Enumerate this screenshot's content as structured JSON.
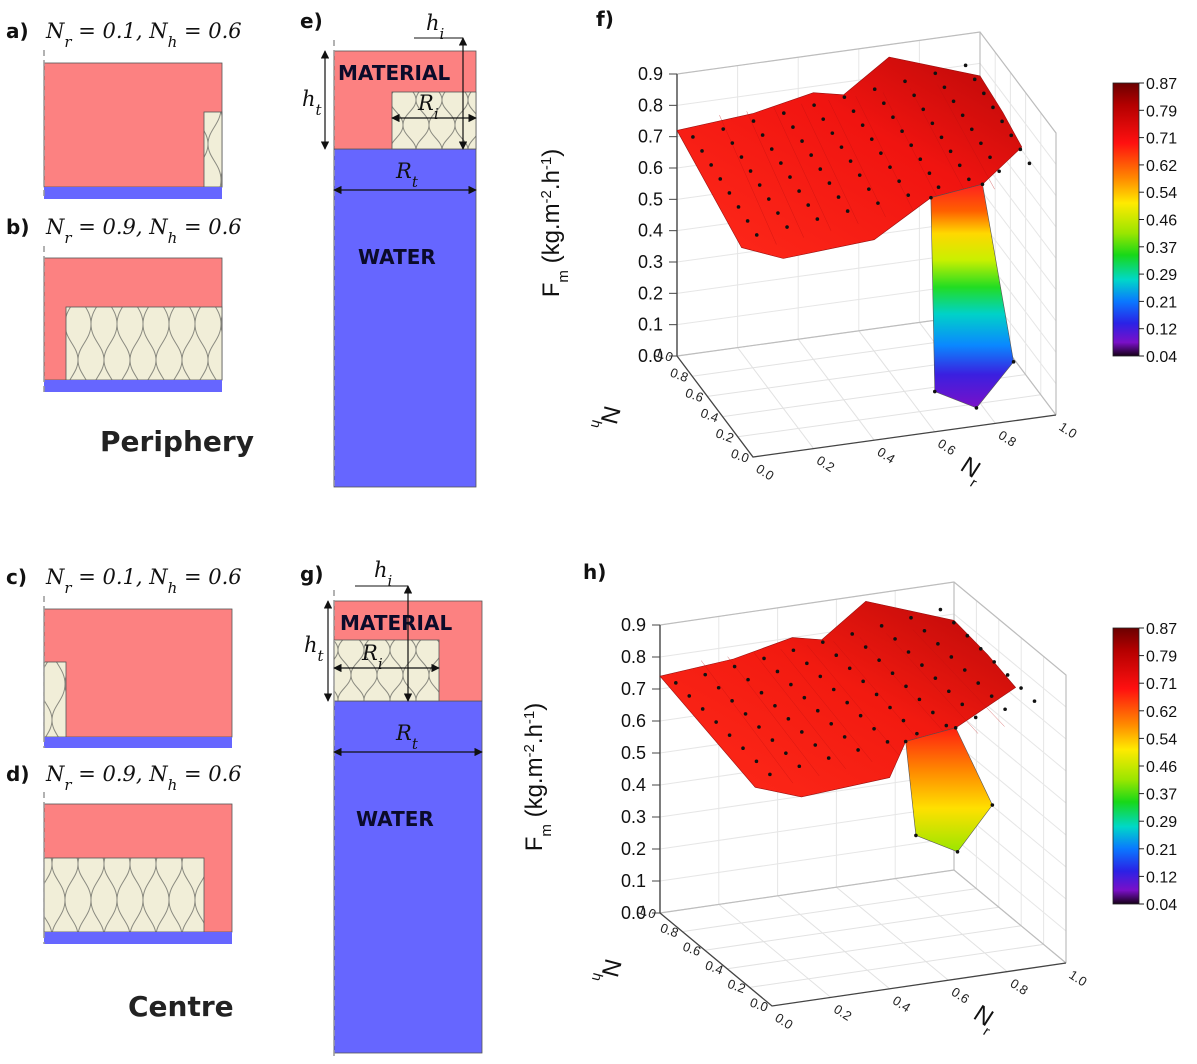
{
  "panels": {
    "a": {
      "letter": "a)",
      "label": "N_r = 0.1, N_h = 0.6"
    },
    "b": {
      "letter": "b)",
      "label": "N_r = 0.9, N_h = 0.6"
    },
    "c": {
      "letter": "c)",
      "label": "N_r = 0.1, N_h = 0.6"
    },
    "d": {
      "letter": "d)",
      "label": "N_r = 0.9, N_h = 0.6"
    },
    "e": {
      "letter": "e)",
      "material": "MATERIAL",
      "water": "WATER",
      "h_i": "h_i",
      "h_t": "h_t",
      "R_i": "R_i",
      "R_t": "R_t"
    },
    "g": {
      "letter": "g)",
      "material": "MATERIAL",
      "water": "WATER",
      "h_i": "h_i",
      "h_t": "h_t",
      "R_i": "R_i",
      "R_t": "R_t"
    },
    "f": {
      "letter": "f)"
    },
    "h": {
      "letter": "h)"
    }
  },
  "group_labels": {
    "periphery": "Periphery",
    "centre": "Centre"
  },
  "colors": {
    "material": "#fc8181",
    "water": "#6666ff",
    "insulation": "#f1eed8",
    "dashed_axis": "#999999"
  },
  "chart_data": [
    {
      "id": "f",
      "type": "surface3d",
      "title": "",
      "zlabel": "F_m (kg.m-2.h-1)",
      "xlabel": "N_r",
      "ylabel": "N_h",
      "zlim": [
        0.0,
        0.9
      ],
      "z_ticks": [
        "0.0",
        "0.1",
        "0.2",
        "0.3",
        "0.4",
        "0.5",
        "0.6",
        "0.7",
        "0.8",
        "0.9"
      ],
      "x_ticks": [
        "0.0",
        "0.2",
        "0.4",
        "0.6",
        "0.8",
        "1.0"
      ],
      "y_ticks": [
        "0.0",
        "0.2",
        "0.4",
        "0.6",
        "0.8",
        "1.0"
      ],
      "colorbar": {
        "colormap": "rainbow",
        "ticks": [
          "0.87",
          "0.79",
          "0.71",
          "0.62",
          "0.54",
          "0.46",
          "0.37",
          "0.29",
          "0.21",
          "0.12",
          "0.04"
        ]
      },
      "plateau_value": 0.72,
      "dip_min": 0.04,
      "dip_location": {
        "N_r": 0.7,
        "N_h": 0.1
      }
    },
    {
      "id": "h",
      "type": "surface3d",
      "title": "",
      "zlabel": "F_m (kg.m-2.h-1)",
      "xlabel": "N_r",
      "ylabel": "N_h",
      "zlim": [
        0.0,
        0.9
      ],
      "z_ticks": [
        "0.0",
        "0.1",
        "0.2",
        "0.3",
        "0.4",
        "0.5",
        "0.6",
        "0.7",
        "0.8",
        "0.9"
      ],
      "x_ticks": [
        "0.0",
        "0.2",
        "0.4",
        "0.6",
        "0.8",
        "1.0"
      ],
      "y_ticks": [
        "0.0",
        "0.2",
        "0.4",
        "0.6",
        "0.8",
        "1.0"
      ],
      "colorbar": {
        "colormap": "rainbow",
        "ticks": [
          "0.87",
          "0.79",
          "0.71",
          "0.62",
          "0.54",
          "0.46",
          "0.37",
          "0.29",
          "0.21",
          "0.12",
          "0.04"
        ]
      },
      "plateau_value": 0.74,
      "dip_min": 0.38,
      "dip_location": {
        "N_r": 0.6,
        "N_h": 0.1
      }
    }
  ]
}
